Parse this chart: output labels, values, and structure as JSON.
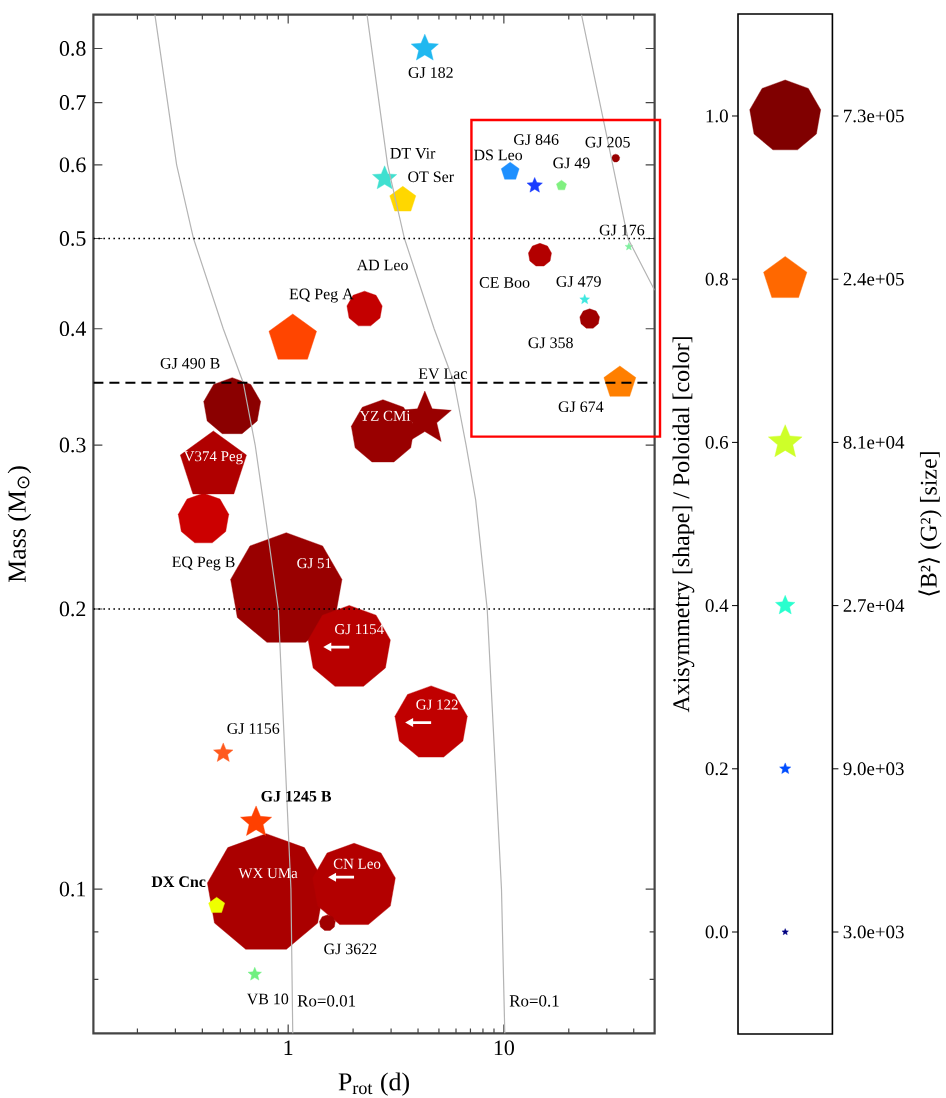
{
  "chart_data": {
    "type": "bubble",
    "xlabel": "P$_{rot}$ (d)",
    "ylabel": "Mass (M$_{⊙}$)",
    "log": "xy",
    "xlim": [
      0.125,
      50
    ],
    "ylim": [
      0.07,
      0.87
    ],
    "xticks": [
      {
        "value": 0.2,
        "label": null
      },
      {
        "value": 0.3,
        "label": null
      },
      {
        "value": 0.4,
        "label": null
      },
      {
        "value": 0.5,
        "label": null
      },
      {
        "value": 0.6,
        "label": null
      },
      {
        "value": 0.7,
        "label": null
      },
      {
        "value": 0.8,
        "label": null
      },
      {
        "value": 0.9,
        "label": null
      },
      1,
      {
        "value": 2,
        "label": null
      },
      {
        "value": 3,
        "label": null
      },
      {
        "value": 4,
        "label": null
      },
      {
        "value": 5,
        "label": null
      },
      {
        "value": 6,
        "label": null
      },
      {
        "value": 7,
        "label": null
      },
      {
        "value": 8,
        "label": null
      },
      {
        "value": 9,
        "label": null
      },
      10,
      {
        "value": 20,
        "label": null
      },
      {
        "value": 30,
        "label": null
      },
      {
        "value": 40,
        "label": null
      }
    ],
    "yticks": [
      {
        "value": 0.08,
        "label": null
      },
      {
        "value": 0.09,
        "label": null
      },
      0.1,
      0.2,
      0.3,
      0.4,
      0.5,
      0.6,
      0.7,
      0.8
    ],
    "series": [
      {
        "marker": "circle",
        "x": [
          2.26,
          0.55,
          0.405,
          0.98,
          1.92,
          4.6,
          0.79,
          2.02,
          1.52,
          2.75,
          33,
          14.7,
          25
        ],
        "values": [
          0.42,
          0.33,
          0.25,
          0.21,
          0.182,
          0.151,
          0.099,
          0.101,
          0.092,
          0.31,
          0.61,
          0.48,
          0.41
        ],
        "sizes": [
          180000,
          470000,
          370000,
          1800000,
          980000,
          760000,
          2000000,
          990000,
          36000,
          580000,
          9000,
          77000,
          56000
        ],
        "colors": [
          "#c40000",
          "#8b0000",
          "#cc0000",
          "#990000",
          "#b80000",
          "#c00000",
          "#aa0000",
          "#b30000",
          "#a00000",
          "#990000",
          "#990000",
          "#b30000",
          "#a00000"
        ]
      },
      {
        "x": [
          1.05,
          0.45,
          3.4,
          10.7,
          34.5,
          0.466,
          18.5
        ],
        "values": [
          0.39,
          0.285,
          0.55,
          0.59,
          0.35,
          0.096,
          0.57
        ],
        "sizes": [
          290000,
          560000,
          87000,
          41000,
          130000,
          33000,
          13000
        ],
        "colors": [
          "#ff4500",
          "#b00000",
          "#ffd700",
          "#1e90ff",
          "#ff7f00",
          "#eeff00",
          "#80f080"
        ]
      },
      {
        "marker": "star",
        "x": [
          2.8,
          4.3,
          4.3,
          13.9,
          0.5,
          0.71,
          0.7,
          38,
          23.7
        ],
        "values": [
          0.58,
          0.8,
          0.32,
          0.57,
          0.14,
          0.118,
          0.081,
          0.49,
          0.43
        ],
        "sizes": [
          42000,
          53000,
          200000,
          17000,
          27000,
          69000,
          13000,
          4300,
          6800
        ],
        "colors": [
          "#40e0d0",
          "#20b8f0",
          "#990000",
          "#1a3cff",
          "#ff5a1e",
          "#ff4000",
          "#70f080",
          "#80f0a0",
          "#40e8e0"
        ]
      },
      {
        "type": "line",
        "name": "Ro=0.01",
        "color": "#b4b4b4",
        "x": [
          0.241,
          0.304,
          0.364,
          0.5,
          0.619,
          0.703,
          0.765,
          0.9,
          1.03,
          1.05
        ],
        "values": [
          0.87,
          0.6,
          0.5,
          0.4,
          0.35,
          0.3,
          0.262,
          0.2,
          0.1,
          0.07
        ]
      },
      {
        "type": "line",
        "name": "Ro=0.1",
        "color": "#b4b4b4",
        "x": [
          2.32,
          2.89,
          3.46,
          4.75,
          5.88,
          6.68,
          7.4,
          8.37,
          9.75,
          10.1
        ],
        "values": [
          0.87,
          0.6,
          0.5,
          0.4,
          0.35,
          0.3,
          0.262,
          0.2,
          0.1,
          0.07
        ]
      },
      {
        "type": "line",
        "color": "#b4b4b4",
        "x": [
          22.9,
          31.5,
          37.6,
          50
        ],
        "values": [
          0.87,
          0.61,
          0.5,
          0.44
        ]
      }
    ],
    "ref_lines": [
      {
        "axis": "y",
        "value": 0.5,
        "line_style": "dotted"
      },
      {
        "axis": "y",
        "value": 0.35,
        "line_style": "dashed"
      },
      {
        "axis": "y",
        "value": 0.2,
        "line_style": "dotted"
      }
    ],
    "annotations": [
      {
        "text": "GJ 182",
        "x": 4.3,
        "y": 0.8
      },
      {
        "text": "DT Vir",
        "x": 2.8,
        "y": 0.58
      },
      {
        "text": "OT Ser",
        "x": 3.4,
        "y": 0.55
      },
      {
        "text": "GJ 846",
        "x": 10.7,
        "y": 0.59
      },
      {
        "text": "DS Leo",
        "x": 13.9,
        "y": 0.57
      },
      {
        "text": "GJ 49",
        "x": 18.5,
        "y": 0.57
      },
      {
        "text": "GJ 205",
        "x": 33,
        "y": 0.61
      },
      {
        "text": "GJ 176",
        "x": 38,
        "y": 0.49
      },
      {
        "text": "AD Leo",
        "x": 2.26,
        "y": 0.42
      },
      {
        "text": "EQ Peg A",
        "x": 1.05,
        "y": 0.39
      },
      {
        "text": "CE Boo",
        "x": 14.7,
        "y": 0.48
      },
      {
        "text": "GJ 479",
        "x": 23.7,
        "y": 0.43
      },
      {
        "text": "GJ 358",
        "x": 25,
        "y": 0.41
      },
      {
        "text": "GJ 490 B",
        "x": 0.55,
        "y": 0.33
      },
      {
        "text": "EV Lac",
        "x": 4.3,
        "y": 0.32
      },
      {
        "text": "YZ CMi",
        "x": 2.75,
        "y": 0.31
      },
      {
        "text": "GJ 674",
        "x": 34.5,
        "y": 0.35
      },
      {
        "text": "V374 Peg",
        "x": 0.45,
        "y": 0.285
      },
      {
        "text": "EQ Peg B",
        "x": 0.405,
        "y": 0.25
      },
      {
        "text": "GJ 51",
        "x": 0.98,
        "y": 0.21
      },
      {
        "text": "GJ 1154",
        "x": 1.92,
        "y": 0.182
      },
      {
        "text": "GJ 122",
        "x": 4.6,
        "y": 0.151
      },
      {
        "text": "GJ 1156",
        "x": 0.5,
        "y": 0.14
      },
      {
        "text": "GJ 1245 B",
        "x": 0.71,
        "y": 0.118
      },
      {
        "text": "WX UMa",
        "x": 0.79,
        "y": 0.099
      },
      {
        "text": "CN Leo",
        "x": 2.02,
        "y": 0.101
      },
      {
        "text": "DX Cnc",
        "x": 0.466,
        "y": 0.096
      },
      {
        "text": "GJ 3622",
        "x": 1.52,
        "y": 0.092
      },
      {
        "text": "VB 10",
        "x": 0.7,
        "y": 0.081
      },
      "0.0",
      "0.2",
      "0.4",
      "0.6",
      "0.8",
      "1.0"
    ],
    "clabel": "Axisymmetry [shape] / Poloidal [color]",
    "legend_title": "⟨B²⟩ (G²) [size]",
    "size_legend": [
      {
        "value": 3000,
        "label": "3.0e+03"
      },
      {
        "value": 9000,
        "label": "9.0e+03"
      },
      {
        "value": 27000,
        "label": "2.7e+04"
      },
      {
        "value": 81000,
        "label": "8.1e+04"
      },
      {
        "value": 240000,
        "label": "2.4e+05"
      },
      {
        "value": 730000,
        "label": "7.3e+05"
      }
    ]
  }
}
